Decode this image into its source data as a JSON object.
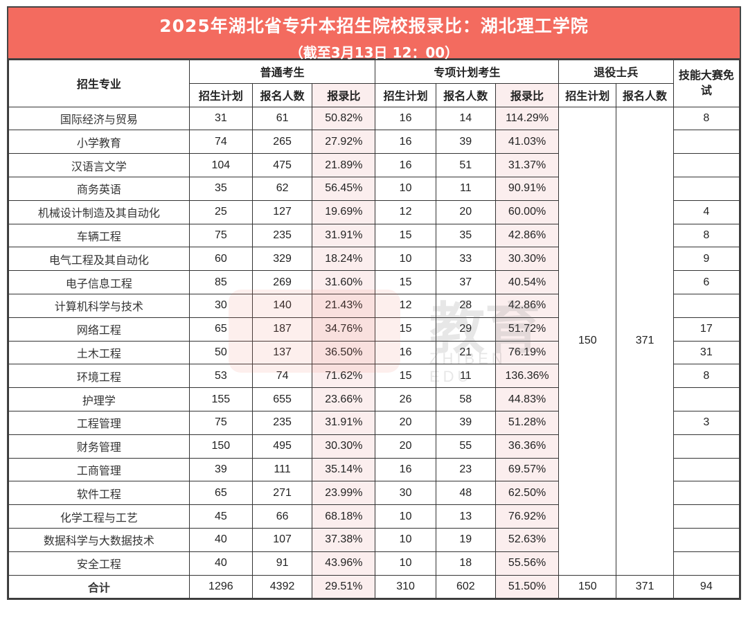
{
  "header": {
    "title": "2025年湖北省专升本招生院校报录比：湖北理工学院",
    "subtitle": "（截至3月13日  12：00）"
  },
  "columns": {
    "major": "招生专业",
    "group_regular": "普通考生",
    "group_special": "专项计划考生",
    "group_veteran": "退役士兵",
    "group_skill": "技能大赛免试",
    "plan": "招生计划",
    "applicants": "报名人数",
    "ratio": "报录比"
  },
  "veteran_merged": {
    "plan": "150",
    "applicants": "371"
  },
  "rows": [
    {
      "major": "国际经济与贸易",
      "r_plan": "31",
      "r_app": "61",
      "r_ratio": "50.82%",
      "s_plan": "16",
      "s_app": "14",
      "s_ratio": "114.29%",
      "skill": "8"
    },
    {
      "major": "小学教育",
      "r_plan": "74",
      "r_app": "265",
      "r_ratio": "27.92%",
      "s_plan": "16",
      "s_app": "39",
      "s_ratio": "41.03%",
      "skill": ""
    },
    {
      "major": "汉语言文学",
      "r_plan": "104",
      "r_app": "475",
      "r_ratio": "21.89%",
      "s_plan": "16",
      "s_app": "51",
      "s_ratio": "31.37%",
      "skill": ""
    },
    {
      "major": "商务英语",
      "r_plan": "35",
      "r_app": "62",
      "r_ratio": "56.45%",
      "s_plan": "10",
      "s_app": "11",
      "s_ratio": "90.91%",
      "skill": ""
    },
    {
      "major": "机械设计制造及其自动化",
      "r_plan": "25",
      "r_app": "127",
      "r_ratio": "19.69%",
      "s_plan": "12",
      "s_app": "20",
      "s_ratio": "60.00%",
      "skill": "4"
    },
    {
      "major": "车辆工程",
      "r_plan": "75",
      "r_app": "235",
      "r_ratio": "31.91%",
      "s_plan": "15",
      "s_app": "35",
      "s_ratio": "42.86%",
      "skill": "8"
    },
    {
      "major": "电气工程及其自动化",
      "r_plan": "60",
      "r_app": "329",
      "r_ratio": "18.24%",
      "s_plan": "10",
      "s_app": "33",
      "s_ratio": "30.30%",
      "skill": "9"
    },
    {
      "major": "电子信息工程",
      "r_plan": "85",
      "r_app": "269",
      "r_ratio": "31.60%",
      "s_plan": "15",
      "s_app": "37",
      "s_ratio": "40.54%",
      "skill": "6"
    },
    {
      "major": "计算机科学与技术",
      "r_plan": "30",
      "r_app": "140",
      "r_ratio": "21.43%",
      "s_plan": "12",
      "s_app": "28",
      "s_ratio": "42.86%",
      "skill": ""
    },
    {
      "major": "网络工程",
      "r_plan": "65",
      "r_app": "187",
      "r_ratio": "34.76%",
      "s_plan": "15",
      "s_app": "29",
      "s_ratio": "51.72%",
      "skill": "17"
    },
    {
      "major": "土木工程",
      "r_plan": "50",
      "r_app": "137",
      "r_ratio": "36.50%",
      "s_plan": "16",
      "s_app": "21",
      "s_ratio": "76.19%",
      "skill": "31"
    },
    {
      "major": "环境工程",
      "r_plan": "53",
      "r_app": "74",
      "r_ratio": "71.62%",
      "s_plan": "15",
      "s_app": "11",
      "s_ratio": "136.36%",
      "skill": "8"
    },
    {
      "major": "护理学",
      "r_plan": "155",
      "r_app": "655",
      "r_ratio": "23.66%",
      "s_plan": "26",
      "s_app": "58",
      "s_ratio": "44.83%",
      "skill": ""
    },
    {
      "major": "工程管理",
      "r_plan": "75",
      "r_app": "235",
      "r_ratio": "31.91%",
      "s_plan": "20",
      "s_app": "39",
      "s_ratio": "51.28%",
      "skill": "3"
    },
    {
      "major": "财务管理",
      "r_plan": "150",
      "r_app": "495",
      "r_ratio": "30.30%",
      "s_plan": "20",
      "s_app": "55",
      "s_ratio": "36.36%",
      "skill": ""
    },
    {
      "major": "工商管理",
      "r_plan": "39",
      "r_app": "111",
      "r_ratio": "35.14%",
      "s_plan": "16",
      "s_app": "23",
      "s_ratio": "69.57%",
      "skill": ""
    },
    {
      "major": "软件工程",
      "r_plan": "65",
      "r_app": "271",
      "r_ratio": "23.99%",
      "s_plan": "30",
      "s_app": "48",
      "s_ratio": "62.50%",
      "skill": ""
    },
    {
      "major": "化学工程与工艺",
      "r_plan": "45",
      "r_app": "66",
      "r_ratio": "68.18%",
      "s_plan": "10",
      "s_app": "13",
      "s_ratio": "76.92%",
      "skill": ""
    },
    {
      "major": "数据科学与大数据技术",
      "r_plan": "40",
      "r_app": "107",
      "r_ratio": "37.38%",
      "s_plan": "10",
      "s_app": "19",
      "s_ratio": "52.63%",
      "skill": ""
    },
    {
      "major": "安全工程",
      "r_plan": "40",
      "r_app": "91",
      "r_ratio": "43.96%",
      "s_plan": "10",
      "s_app": "18",
      "s_ratio": "55.56%",
      "skill": ""
    }
  ],
  "total": {
    "label": "合计",
    "r_plan": "1296",
    "r_app": "4392",
    "r_ratio": "29.51%",
    "s_plan": "310",
    "s_app": "602",
    "s_ratio": "51.50%",
    "v_plan": "150",
    "v_app": "371",
    "skill": "94"
  },
  "watermark": {
    "text": "教育",
    "sub": "ZHIBEN EDU"
  },
  "colors": {
    "title_bg": "#f36b5f",
    "ratio_bg": "#fbeeee",
    "border": "#333333"
  }
}
